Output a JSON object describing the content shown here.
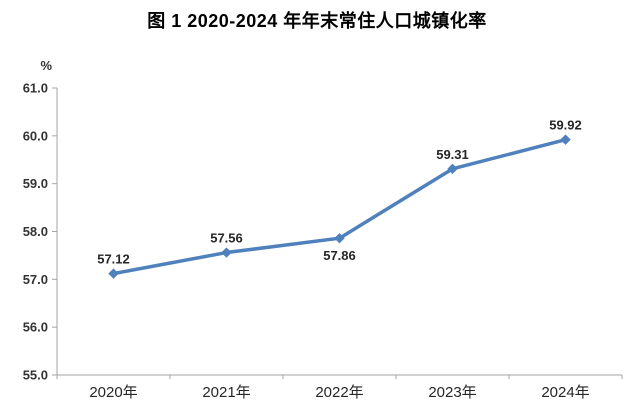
{
  "title": "图 1  2020-2024 年年末常住人口城镇化率",
  "chart_data": {
    "type": "line",
    "unit_label": "%",
    "categories": [
      "2020年",
      "2021年",
      "2022年",
      "2023年",
      "2024年"
    ],
    "values": [
      57.12,
      57.56,
      57.86,
      59.31,
      59.92
    ],
    "data_labels": [
      "57.12",
      "57.56",
      "57.86",
      "59.31",
      "59.92"
    ],
    "data_label_positions": [
      "above",
      "above",
      "below",
      "above",
      "above"
    ],
    "ylim": [
      55.0,
      61.0
    ],
    "yticks": [
      55.0,
      56.0,
      57.0,
      58.0,
      59.0,
      60.0,
      61.0
    ],
    "ytick_labels": [
      "55.0",
      "56.0",
      "57.0",
      "58.0",
      "59.0",
      "60.0",
      "61.0"
    ],
    "grid": false,
    "legend": "none",
    "marker": "diamond",
    "colors": {
      "line": "#4F81BD",
      "marker": "#4F81BD",
      "axis": "#A6A6A6",
      "tick_label": "#333333",
      "data_label": "#262626",
      "title": "#000000"
    }
  }
}
